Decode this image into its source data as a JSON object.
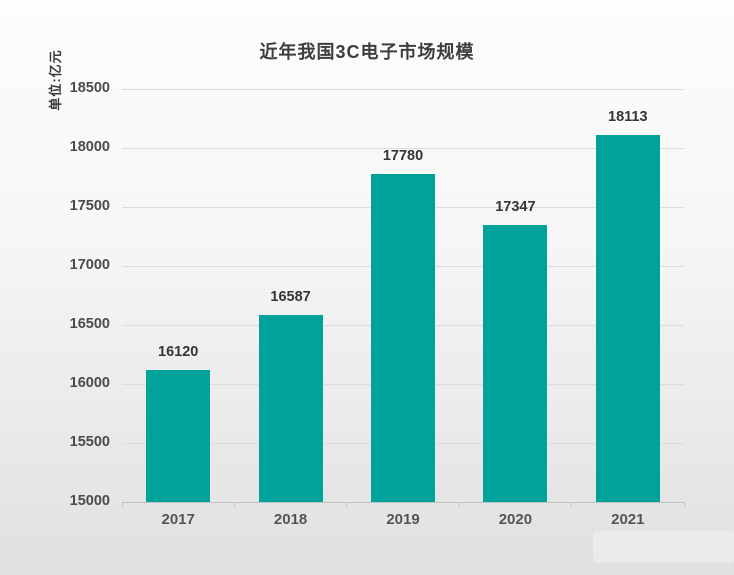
{
  "page": {
    "background_top": "#fdfdfd",
    "background_mid": "#f6f6f6",
    "background_bottom": "#e0e0e0"
  },
  "chart_data": {
    "type": "bar",
    "title": "近年我国3C电子市场规模",
    "unit_label": "单位:亿元",
    "categories": [
      "2017",
      "2018",
      "2019",
      "2020",
      "2021"
    ],
    "values": [
      16120,
      16587,
      17780,
      17347,
      18113
    ],
    "ylim": [
      15000,
      18500
    ],
    "ytick_step": 500,
    "ytick_labels": [
      "15000",
      "15500",
      "16000",
      "16500",
      "17000",
      "17500",
      "18000",
      "18500"
    ],
    "grid": true,
    "legend": null,
    "bar_color": "#00a29a",
    "gridline_color": "#dcdcdc",
    "axis_color": "#c2c2c2",
    "title_color": "#3e3e3e",
    "label_color": "#353535"
  }
}
